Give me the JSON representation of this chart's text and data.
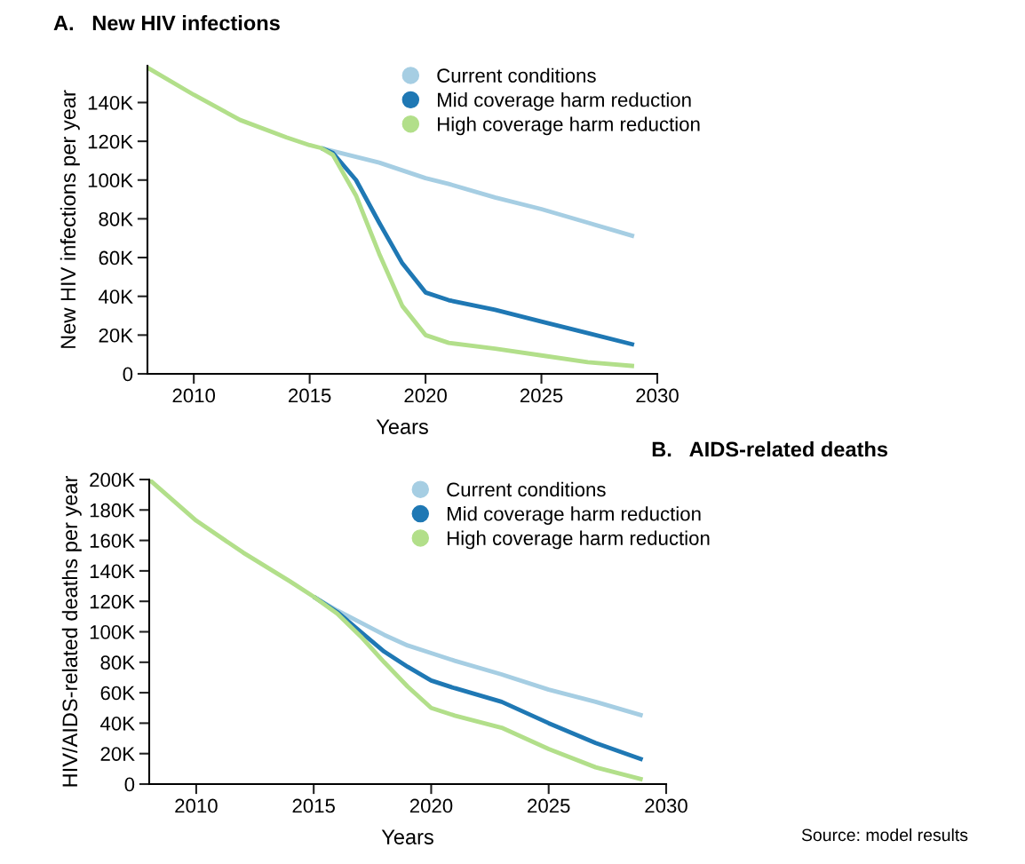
{
  "chart_data": [
    {
      "type": "line",
      "title": "A.   New HIV infections",
      "xlabel": "Years",
      "ylabel": "New HIV infections per year",
      "x": [
        2008,
        2010,
        2012,
        2014,
        2015,
        2015.5,
        2016,
        2017,
        2018,
        2019,
        2020,
        2021,
        2023,
        2025,
        2027,
        2029
      ],
      "series": [
        {
          "name": "Current conditions",
          "color": "#a6cee3",
          "values": [
            null,
            null,
            null,
            null,
            null,
            116500,
            115000,
            112000,
            109000,
            105000,
            101000,
            98000,
            91000,
            85000,
            78000,
            71000
          ]
        },
        {
          "name": "Mid coverage harm reduction",
          "color": "#1f78b4",
          "values": [
            null,
            null,
            null,
            null,
            null,
            116500,
            114000,
            100000,
            78000,
            57000,
            42000,
            38000,
            33000,
            27000,
            21000,
            15000
          ]
        },
        {
          "name": "High coverage harm reduction",
          "color": "#b2df8a",
          "values": [
            158000,
            144000,
            131000,
            122000,
            118000,
            116500,
            113000,
            92000,
            62000,
            35000,
            20000,
            16000,
            13000,
            9500,
            6000,
            4000
          ]
        }
      ],
      "xlim": [
        2008,
        2030
      ],
      "xticks": [
        2010,
        2015,
        2020,
        2025,
        2030
      ],
      "ylim": [
        0,
        159000
      ],
      "yticks": [
        {
          "value": 0,
          "label": "0"
        },
        {
          "value": 20000,
          "label": "20K"
        },
        {
          "value": 40000,
          "label": "40K"
        },
        {
          "value": 60000,
          "label": "60K"
        },
        {
          "value": 80000,
          "label": "80K"
        },
        {
          "value": 100000,
          "label": "100K"
        },
        {
          "value": 120000,
          "label": "120K"
        },
        {
          "value": 140000,
          "label": "140K"
        }
      ],
      "legend": "top right",
      "grid": false,
      "marker": "none",
      "line_style": "solid"
    },
    {
      "type": "line",
      "title": "B.   AIDS-related deaths",
      "xlabel": "Years",
      "ylabel": "HIV/AIDS-related deaths per year",
      "x": [
        2008,
        2010,
        2012,
        2014,
        2015,
        2016,
        2017,
        2018,
        2019,
        2020,
        2021,
        2023,
        2025,
        2027,
        2029
      ],
      "series": [
        {
          "name": "Current conditions",
          "color": "#a6cee3",
          "values": [
            null,
            null,
            null,
            null,
            123000,
            114000,
            106000,
            98000,
            91000,
            86000,
            81000,
            72000,
            62000,
            54000,
            45000
          ]
        },
        {
          "name": "Mid coverage harm reduction",
          "color": "#1f78b4",
          "values": [
            null,
            null,
            null,
            null,
            123000,
            113000,
            100000,
            87000,
            77000,
            68000,
            63000,
            54000,
            40000,
            27000,
            16000
          ]
        },
        {
          "name": "High coverage harm reduction",
          "color": "#b2df8a",
          "values": [
            200000,
            173000,
            152000,
            133000,
            123000,
            112000,
            97000,
            80000,
            64000,
            50000,
            45000,
            37000,
            23000,
            11000,
            3000
          ]
        }
      ],
      "xlim": [
        2008,
        2030
      ],
      "xticks": [
        2010,
        2015,
        2020,
        2025,
        2030
      ],
      "ylim": [
        0,
        200000
      ],
      "yticks": [
        {
          "value": 0,
          "label": "0"
        },
        {
          "value": 20000,
          "label": "20K"
        },
        {
          "value": 40000,
          "label": "40K"
        },
        {
          "value": 60000,
          "label": "60K"
        },
        {
          "value": 80000,
          "label": "80K"
        },
        {
          "value": 100000,
          "label": "100K"
        },
        {
          "value": 120000,
          "label": "120K"
        },
        {
          "value": 140000,
          "label": "140K"
        },
        {
          "value": 160000,
          "label": "160K"
        },
        {
          "value": 180000,
          "label": "180K"
        },
        {
          "value": 200000,
          "label": "200K"
        }
      ],
      "legend": "top right",
      "grid": false,
      "marker": "none",
      "line_style": "solid",
      "annotations": [
        "Source: model results"
      ]
    }
  ]
}
